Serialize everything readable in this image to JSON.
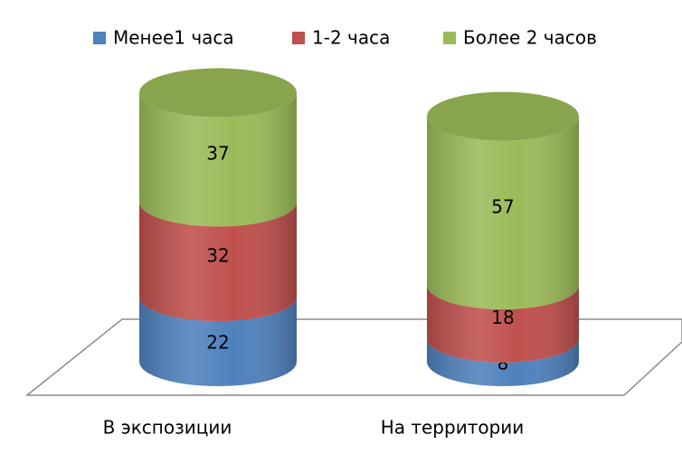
{
  "chart_data": {
    "type": "bar",
    "categories": [
      "В экспозиции",
      "На территории"
    ],
    "series": [
      {
        "name": "Менее1 часа",
        "color": "#4f81bd",
        "values": [
          22,
          8
        ]
      },
      {
        "name": "1-2 часа",
        "color": "#c0504d",
        "values": [
          32,
          18
        ]
      },
      {
        "name": "Более 2 часов",
        "color": "#9bbb59",
        "values": [
          37,
          57
        ]
      }
    ]
  }
}
